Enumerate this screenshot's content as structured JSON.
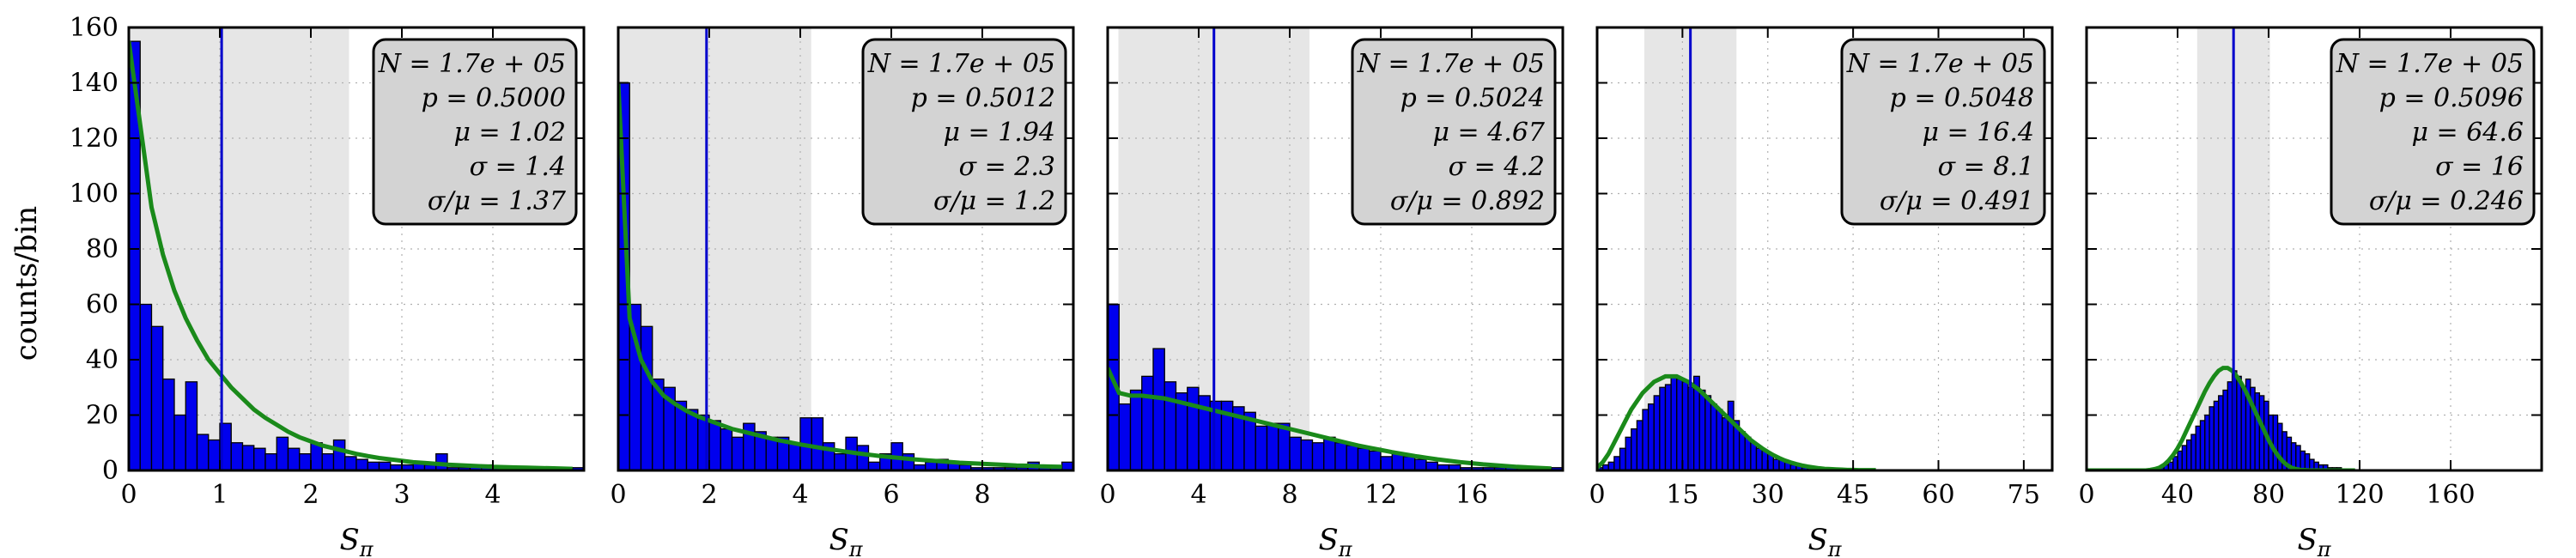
{
  "figure": {
    "ylabel": "counts/bin",
    "xlabel": "S",
    "xlabel_sub": "π"
  },
  "chart_data": [
    {
      "type": "bar",
      "xlabel": "S_π",
      "ylabel": "counts/bin",
      "xlim": [
        0,
        5
      ],
      "ylim": [
        0,
        160
      ],
      "xticks": [
        0,
        1,
        2,
        3,
        4
      ],
      "yticks": [
        0,
        20,
        40,
        60,
        80,
        100,
        120,
        140,
        160
      ],
      "grid": true,
      "bin_width": 0.125,
      "bin_counts": [
        155,
        60,
        52,
        33,
        20,
        32,
        13,
        11,
        17,
        10,
        9,
        8,
        6,
        12,
        8,
        6,
        10,
        6,
        11,
        5,
        4,
        3,
        3,
        2,
        2,
        3,
        2,
        6,
        1,
        1,
        2,
        2,
        1,
        1,
        1,
        1,
        1,
        1,
        1,
        1
      ],
      "mean_line": 1.02,
      "shaded_band": [
        0,
        2.42
      ],
      "fit_curve": {
        "color": "#1a8a1a",
        "y": [
          155,
          125,
          95,
          78,
          65,
          55,
          47,
          40,
          35,
          30,
          26,
          22,
          19,
          16.5,
          14,
          12,
          10.5,
          9,
          8,
          7,
          6,
          5.2,
          4.5,
          4,
          3.5,
          3,
          2.7,
          2.4,
          2.1,
          1.9,
          1.7,
          1.5,
          1.3,
          1.2,
          1.1,
          1,
          0.9,
          0.8,
          0.7,
          0.6
        ]
      },
      "stats": [
        "N = 1.7e + 05",
        "p = 0.5000",
        "μ = 1.02",
        "σ = 1.4",
        "σ/μ = 1.37"
      ]
    },
    {
      "type": "bar",
      "xlabel": "S_π",
      "ylabel": "counts/bin",
      "xlim": [
        0,
        10
      ],
      "ylim": [
        0,
        160
      ],
      "xticks": [
        0,
        2,
        4,
        6,
        8
      ],
      "yticks": [
        0,
        20,
        40,
        60,
        80,
        100,
        120,
        140,
        160
      ],
      "grid": true,
      "bin_width": 0.25,
      "bin_counts": [
        140,
        60,
        52,
        33,
        30,
        25,
        22,
        20,
        18,
        15,
        12,
        17,
        14,
        12,
        12,
        10,
        19,
        19,
        10,
        6,
        12,
        9,
        3,
        6,
        10,
        6,
        2,
        3,
        4,
        3,
        2,
        1,
        1,
        1,
        1,
        1,
        3,
        1,
        1,
        3
      ],
      "mean_line": 1.94,
      "shaded_band": [
        0,
        4.24
      ],
      "fit_curve": {
        "color": "#1a8a1a",
        "y": [
          140,
          55,
          40,
          32,
          27,
          24,
          21.5,
          19.5,
          18,
          16.5,
          15,
          14,
          13,
          12,
          11,
          10.2,
          9.4,
          8.7,
          8,
          7.4,
          6.8,
          6.2,
          5.7,
          5.2,
          4.8,
          4.4,
          4,
          3.7,
          3.4,
          3.1,
          2.8,
          2.6,
          2.4,
          2.2,
          2,
          1.8,
          1.7,
          1.5,
          1.4,
          1.3
        ]
      },
      "stats": [
        "N = 1.7e + 05",
        "p = 0.5012",
        "μ = 1.94",
        "σ = 2.3",
        "σ/μ = 1.2"
      ]
    },
    {
      "type": "bar",
      "xlabel": "S_π",
      "ylabel": "counts/bin",
      "xlim": [
        0,
        20
      ],
      "ylim": [
        0,
        160
      ],
      "xticks": [
        0,
        4,
        8,
        12,
        16
      ],
      "yticks": [
        0,
        20,
        40,
        60,
        80,
        100,
        120,
        140,
        160
      ],
      "grid": true,
      "bin_width": 0.5,
      "bin_counts": [
        60,
        24,
        29,
        34,
        44,
        32,
        28,
        30,
        27,
        25,
        25,
        23,
        21,
        16,
        17,
        17,
        12,
        11,
        10,
        12,
        10,
        9,
        8,
        7,
        5,
        6,
        5,
        4,
        3,
        2,
        2,
        1,
        1,
        1,
        1,
        1,
        1,
        1,
        1,
        1
      ],
      "mean_line": 4.67,
      "shaded_band": [
        0.47,
        8.87
      ],
      "fit_curve": {
        "color": "#1a8a1a",
        "y": [
          37,
          28,
          27,
          27,
          26.5,
          26,
          25,
          24,
          23,
          22,
          21,
          20,
          19,
          18,
          17,
          16,
          15,
          14,
          13,
          12,
          11,
          10,
          9,
          8.2,
          7.4,
          6.6,
          5.9,
          5.2,
          4.6,
          4,
          3.5,
          3,
          2.6,
          2.2,
          1.9,
          1.6,
          1.3,
          1.1,
          0.9,
          0.7
        ]
      },
      "stats": [
        "N = 1.7e + 05",
        "p = 0.5024",
        "μ = 4.67",
        "σ = 4.2",
        "σ/μ = 0.892"
      ]
    },
    {
      "type": "bar",
      "xlabel": "S_π",
      "ylabel": "counts/bin",
      "xlim": [
        0,
        80
      ],
      "ylim": [
        0,
        160
      ],
      "xticks": [
        0,
        15,
        30,
        45,
        60,
        75
      ],
      "yticks": [
        0,
        20,
        40,
        60,
        80,
        100,
        120,
        140,
        160
      ],
      "grid": true,
      "bin_width": 1,
      "bin_counts": [
        1,
        2,
        3,
        5,
        8,
        12,
        15,
        18,
        22,
        24,
        27,
        30,
        31,
        34,
        33,
        32,
        30,
        34,
        29,
        27,
        24,
        22,
        19,
        25,
        18,
        14,
        12,
        10,
        8,
        7,
        6,
        4,
        4,
        3,
        2,
        2,
        1,
        1,
        1,
        1,
        0,
        0,
        0,
        0,
        0,
        0,
        0,
        0,
        0,
        0
      ],
      "mean_line": 16.4,
      "shaded_band": [
        8.3,
        24.5
      ],
      "fit_curve": {
        "color": "#1a8a1a",
        "y": [
          1,
          3,
          6,
          10,
          14,
          18,
          22,
          25,
          28,
          30,
          32,
          33,
          34,
          34,
          34,
          33,
          32,
          30.5,
          29,
          27,
          25,
          23,
          21,
          19,
          17,
          15,
          13,
          11,
          9.5,
          8,
          6.7,
          5.5,
          4.5,
          3.6,
          2.9,
          2.3,
          1.8,
          1.4,
          1.1,
          0.8,
          0.6,
          0.5,
          0.4,
          0.3,
          0.2,
          0.2,
          0.1,
          0.1,
          0.1,
          0.1
        ]
      },
      "stats": [
        "N = 1.7e + 05",
        "p = 0.5048",
        "μ = 16.4",
        "σ = 8.1",
        "σ/μ = 0.491"
      ]
    },
    {
      "type": "bar",
      "xlabel": "S_π",
      "ylabel": "counts/bin",
      "xlim": [
        0,
        200
      ],
      "ylim": [
        0,
        160
      ],
      "xticks": [
        0,
        40,
        80,
        120,
        160
      ],
      "yticks": [
        0,
        20,
        40,
        60,
        80,
        100,
        120,
        140,
        160
      ],
      "grid": true,
      "bin_width": 2,
      "bin_counts": [
        0,
        0,
        0,
        0,
        0,
        0,
        0,
        0,
        0,
        0,
        0,
        0,
        0,
        0,
        0,
        0,
        1,
        2,
        3,
        5,
        7,
        9,
        11,
        13,
        16,
        18,
        20,
        23,
        25,
        27,
        29,
        32,
        36,
        34,
        30,
        33,
        30,
        28,
        27,
        25,
        20,
        20,
        17,
        14,
        12,
        10,
        9,
        7,
        6,
        4,
        3,
        2,
        2,
        1,
        1,
        1,
        0,
        0,
        0,
        0
      ],
      "mean_line": 64.6,
      "shaded_band": [
        48.6,
        80.6
      ],
      "fit_curve": {
        "color": "#1a8a1a",
        "y": [
          0,
          0,
          0,
          0,
          0,
          0,
          0,
          0,
          0,
          0,
          0,
          0,
          0,
          0,
          0.2,
          0.5,
          1,
          2,
          3.5,
          5.5,
          8,
          11,
          14.5,
          18,
          21.5,
          25,
          28.5,
          31.5,
          34,
          36,
          37,
          37,
          36,
          34,
          31.5,
          28.5,
          25,
          21.5,
          18,
          14.5,
          11,
          8,
          5.5,
          3.5,
          2,
          1,
          0.5,
          0.2,
          0.1,
          0,
          0,
          0,
          0,
          0,
          0,
          0,
          0,
          0,
          0,
          0
        ]
      },
      "stats": [
        "N = 1.7e + 05",
        "p = 0.5096",
        "μ = 64.6",
        "σ = 16",
        "σ/μ = 0.246"
      ]
    }
  ],
  "colors": {
    "bar_fill": "#0000ee",
    "bar_edge": "#000000",
    "mean_line": "#0000cc",
    "fit": "#1a8a1a",
    "band": "#e6e6e6",
    "legend_bg": "#d3d3d3"
  }
}
